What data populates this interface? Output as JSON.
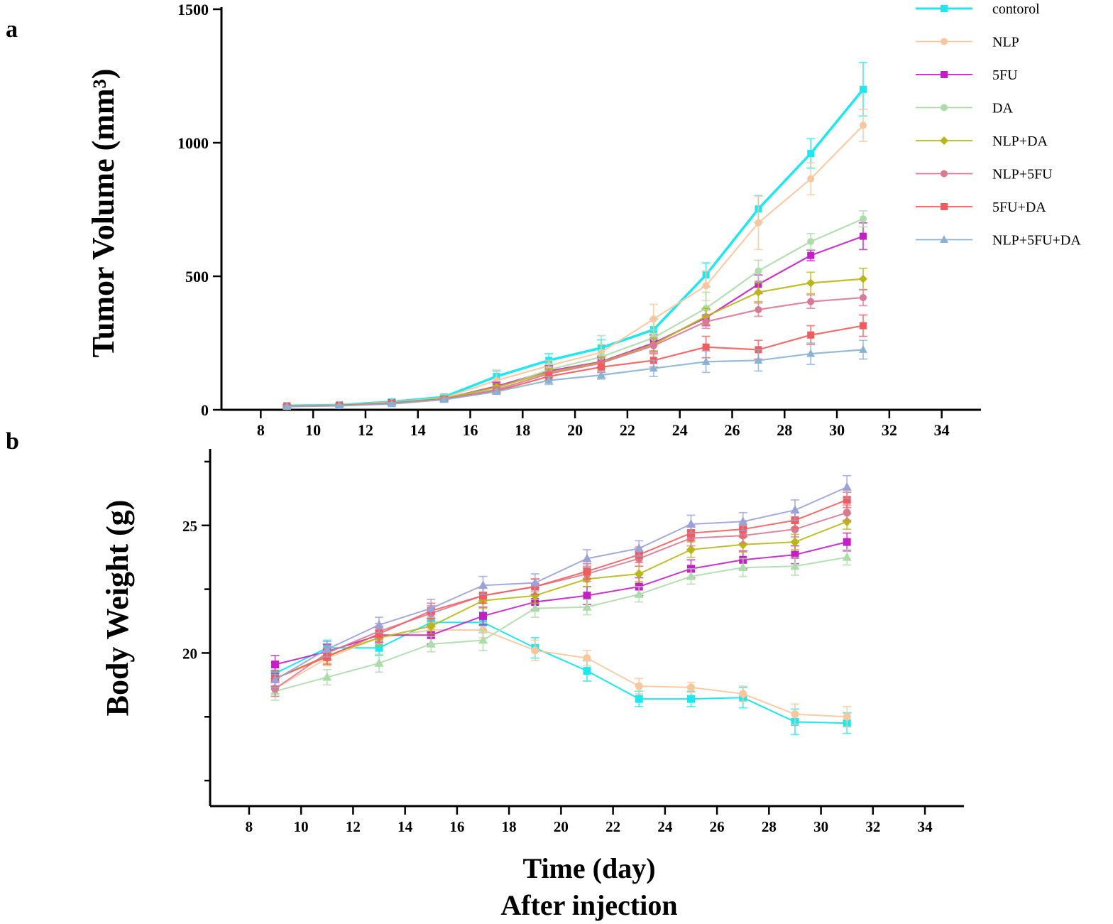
{
  "figure": {
    "x_title": "Time (day)",
    "x_subtitle": "After injection"
  },
  "colors": {
    "contorol": "#1ee8ee",
    "NLP": "#f8c79e",
    "5FU": "#c41ec4",
    "DA": "#acdca8",
    "NLP+DA": "#b9b716",
    "NLP+5FU": "#d97a94",
    "5FU+DA": "#f35c5c",
    "NLP+5FU+DA": "#8ab2d4",
    "NLP+5FU+DA_b": "#9aa2d8"
  },
  "chart_data": [
    {
      "panel": "a",
      "type": "line",
      "ylabel": "Tumor Volume (mm³)",
      "xlabel": "",
      "xlim": [
        6.5,
        35.5
      ],
      "ylim": [
        0,
        1500
      ],
      "xticks": [
        8,
        10,
        12,
        14,
        16,
        18,
        20,
        22,
        24,
        26,
        28,
        30,
        32,
        34
      ],
      "yticks": [
        0,
        500,
        1000,
        1500
      ],
      "legend": "top-right",
      "x": [
        9,
        11,
        13,
        15,
        17,
        19,
        21,
        23,
        25,
        27,
        29,
        31
      ],
      "series": [
        {
          "name": "contorol",
          "marker": "square",
          "values": [
            15,
            18,
            30,
            48,
            125,
            185,
            232,
            300,
            505,
            752,
            960,
            1200
          ],
          "errors": [
            5,
            5,
            8,
            10,
            20,
            25,
            30,
            40,
            45,
            50,
            55,
            100
          ]
        },
        {
          "name": "NLP",
          "marker": "circle",
          "values": [
            14,
            18,
            28,
            45,
            110,
            165,
            215,
            340,
            465,
            700,
            865,
            1065
          ],
          "errors": [
            5,
            5,
            8,
            10,
            40,
            20,
            30,
            55,
            55,
            100,
            60,
            60
          ]
        },
        {
          "name": "5FU",
          "marker": "square",
          "values": [
            14,
            17,
            26,
            42,
            88,
            145,
            180,
            250,
            345,
            470,
            578,
            650
          ],
          "errors": [
            4,
            5,
            6,
            10,
            15,
            20,
            20,
            30,
            30,
            35,
            20,
            50
          ]
        },
        {
          "name": "DA",
          "marker": "circle",
          "values": [
            14,
            18,
            27,
            45,
            80,
            150,
            198,
            270,
            380,
            520,
            630,
            715
          ],
          "errors": [
            4,
            5,
            6,
            10,
            10,
            20,
            80,
            30,
            60,
            40,
            30,
            30
          ]
        },
        {
          "name": "NLP+DA",
          "marker": "diamond",
          "values": [
            14,
            17,
            26,
            42,
            85,
            140,
            178,
            245,
            350,
            440,
            475,
            490
          ],
          "errors": [
            4,
            5,
            6,
            8,
            12,
            15,
            20,
            25,
            30,
            35,
            40,
            40
          ]
        },
        {
          "name": "NLP+5FU",
          "marker": "circle",
          "values": [
            13,
            16,
            25,
            40,
            75,
            135,
            175,
            240,
            330,
            375,
            405,
            420
          ],
          "errors": [
            4,
            5,
            6,
            8,
            10,
            15,
            20,
            25,
            25,
            25,
            25,
            30
          ]
        },
        {
          "name": "5FU+DA",
          "marker": "square",
          "values": [
            13,
            16,
            24,
            40,
            70,
            125,
            160,
            185,
            235,
            225,
            280,
            315
          ],
          "errors": [
            4,
            5,
            6,
            8,
            10,
            15,
            20,
            25,
            40,
            35,
            35,
            40
          ]
        },
        {
          "name": "NLP+5FU+DA",
          "marker": "triangle",
          "values": [
            12,
            15,
            22,
            38,
            68,
            110,
            130,
            155,
            180,
            185,
            210,
            225
          ],
          "errors": [
            3,
            4,
            5,
            8,
            10,
            15,
            15,
            30,
            40,
            40,
            40,
            35
          ]
        }
      ]
    },
    {
      "panel": "b",
      "type": "line",
      "ylabel": "Body Weight (g)",
      "xlabel": "Time (day)",
      "xlim": [
        6.5,
        35.5
      ],
      "ylim": [
        14,
        28
      ],
      "xticks": [
        8,
        10,
        12,
        14,
        16,
        18,
        20,
        22,
        24,
        26,
        28,
        30,
        32,
        34
      ],
      "yticks": [
        20,
        25
      ],
      "minor_yticks": [
        15,
        17.5,
        22.5,
        27.5
      ],
      "legend": "none",
      "x": [
        9,
        11,
        13,
        15,
        17,
        19,
        21,
        23,
        25,
        27,
        29,
        31
      ],
      "series": [
        {
          "name": "contorol",
          "marker": "square",
          "values": [
            19.2,
            20.2,
            20.2,
            21.2,
            21.2,
            20.2,
            19.3,
            18.2,
            18.2,
            18.25,
            17.3,
            17.25
          ],
          "errors": [
            0.3,
            0.3,
            0.3,
            0.4,
            0.4,
            0.4,
            0.4,
            0.3,
            0.3,
            0.4,
            0.5,
            0.4
          ]
        },
        {
          "name": "NLP",
          "marker": "circle",
          "values": [
            18.6,
            19.8,
            20.6,
            20.9,
            20.9,
            20.1,
            19.8,
            18.7,
            18.65,
            18.4,
            17.6,
            17.5
          ],
          "errors": [
            0.3,
            0.3,
            0.3,
            0.3,
            0.3,
            0.4,
            0.3,
            0.3,
            0.2,
            0.3,
            0.4,
            0.4
          ]
        },
        {
          "name": "5FU",
          "marker": "square",
          "values": [
            19.55,
            20.05,
            20.7,
            20.7,
            21.45,
            22.0,
            22.25,
            22.6,
            23.3,
            23.65,
            23.85,
            24.35
          ],
          "errors": [
            0.35,
            0.3,
            0.3,
            0.35,
            0.35,
            0.3,
            0.35,
            0.35,
            0.35,
            0.35,
            0.35,
            0.35
          ]
        },
        {
          "name": "DA",
          "marker": "triangle",
          "values": [
            18.5,
            19.05,
            19.6,
            20.35,
            20.5,
            21.75,
            21.8,
            22.3,
            23.0,
            23.35,
            23.4,
            23.75
          ],
          "errors": [
            0.35,
            0.3,
            0.35,
            0.3,
            0.4,
            0.35,
            0.3,
            0.3,
            0.3,
            0.35,
            0.35,
            0.3
          ]
        },
        {
          "name": "NLP+DA",
          "marker": "diamond",
          "values": [
            19.0,
            19.9,
            20.6,
            21.05,
            22.05,
            22.25,
            22.9,
            23.1,
            24.05,
            24.25,
            24.35,
            25.15
          ],
          "errors": [
            0.3,
            0.3,
            0.3,
            0.3,
            0.3,
            0.3,
            0.3,
            0.3,
            0.3,
            0.3,
            0.3,
            0.3
          ]
        },
        {
          "name": "NLP+5FU",
          "marker": "circle",
          "values": [
            18.6,
            20.0,
            20.85,
            21.55,
            22.25,
            22.6,
            23.1,
            23.7,
            24.5,
            24.6,
            24.85,
            25.5
          ],
          "errors": [
            0.3,
            0.3,
            0.3,
            0.3,
            0.3,
            0.3,
            0.3,
            0.3,
            0.3,
            0.3,
            0.3,
            0.3
          ]
        },
        {
          "name": "5FU+DA",
          "marker": "square",
          "values": [
            19.0,
            19.85,
            20.75,
            21.65,
            22.25,
            22.6,
            23.2,
            23.85,
            24.7,
            24.85,
            25.2,
            26.0
          ],
          "errors": [
            0.3,
            0.3,
            0.3,
            0.3,
            0.3,
            0.3,
            0.3,
            0.3,
            0.3,
            0.3,
            0.3,
            0.3
          ]
        },
        {
          "name": "NLP+5FU+DA",
          "marker": "triangle",
          "values": [
            18.95,
            20.15,
            21.1,
            21.75,
            22.65,
            22.75,
            23.7,
            24.1,
            25.05,
            25.15,
            25.6,
            26.5
          ],
          "errors": [
            0.3,
            0.3,
            0.3,
            0.35,
            0.35,
            0.35,
            0.35,
            0.3,
            0.35,
            0.35,
            0.4,
            0.45
          ]
        }
      ]
    }
  ]
}
